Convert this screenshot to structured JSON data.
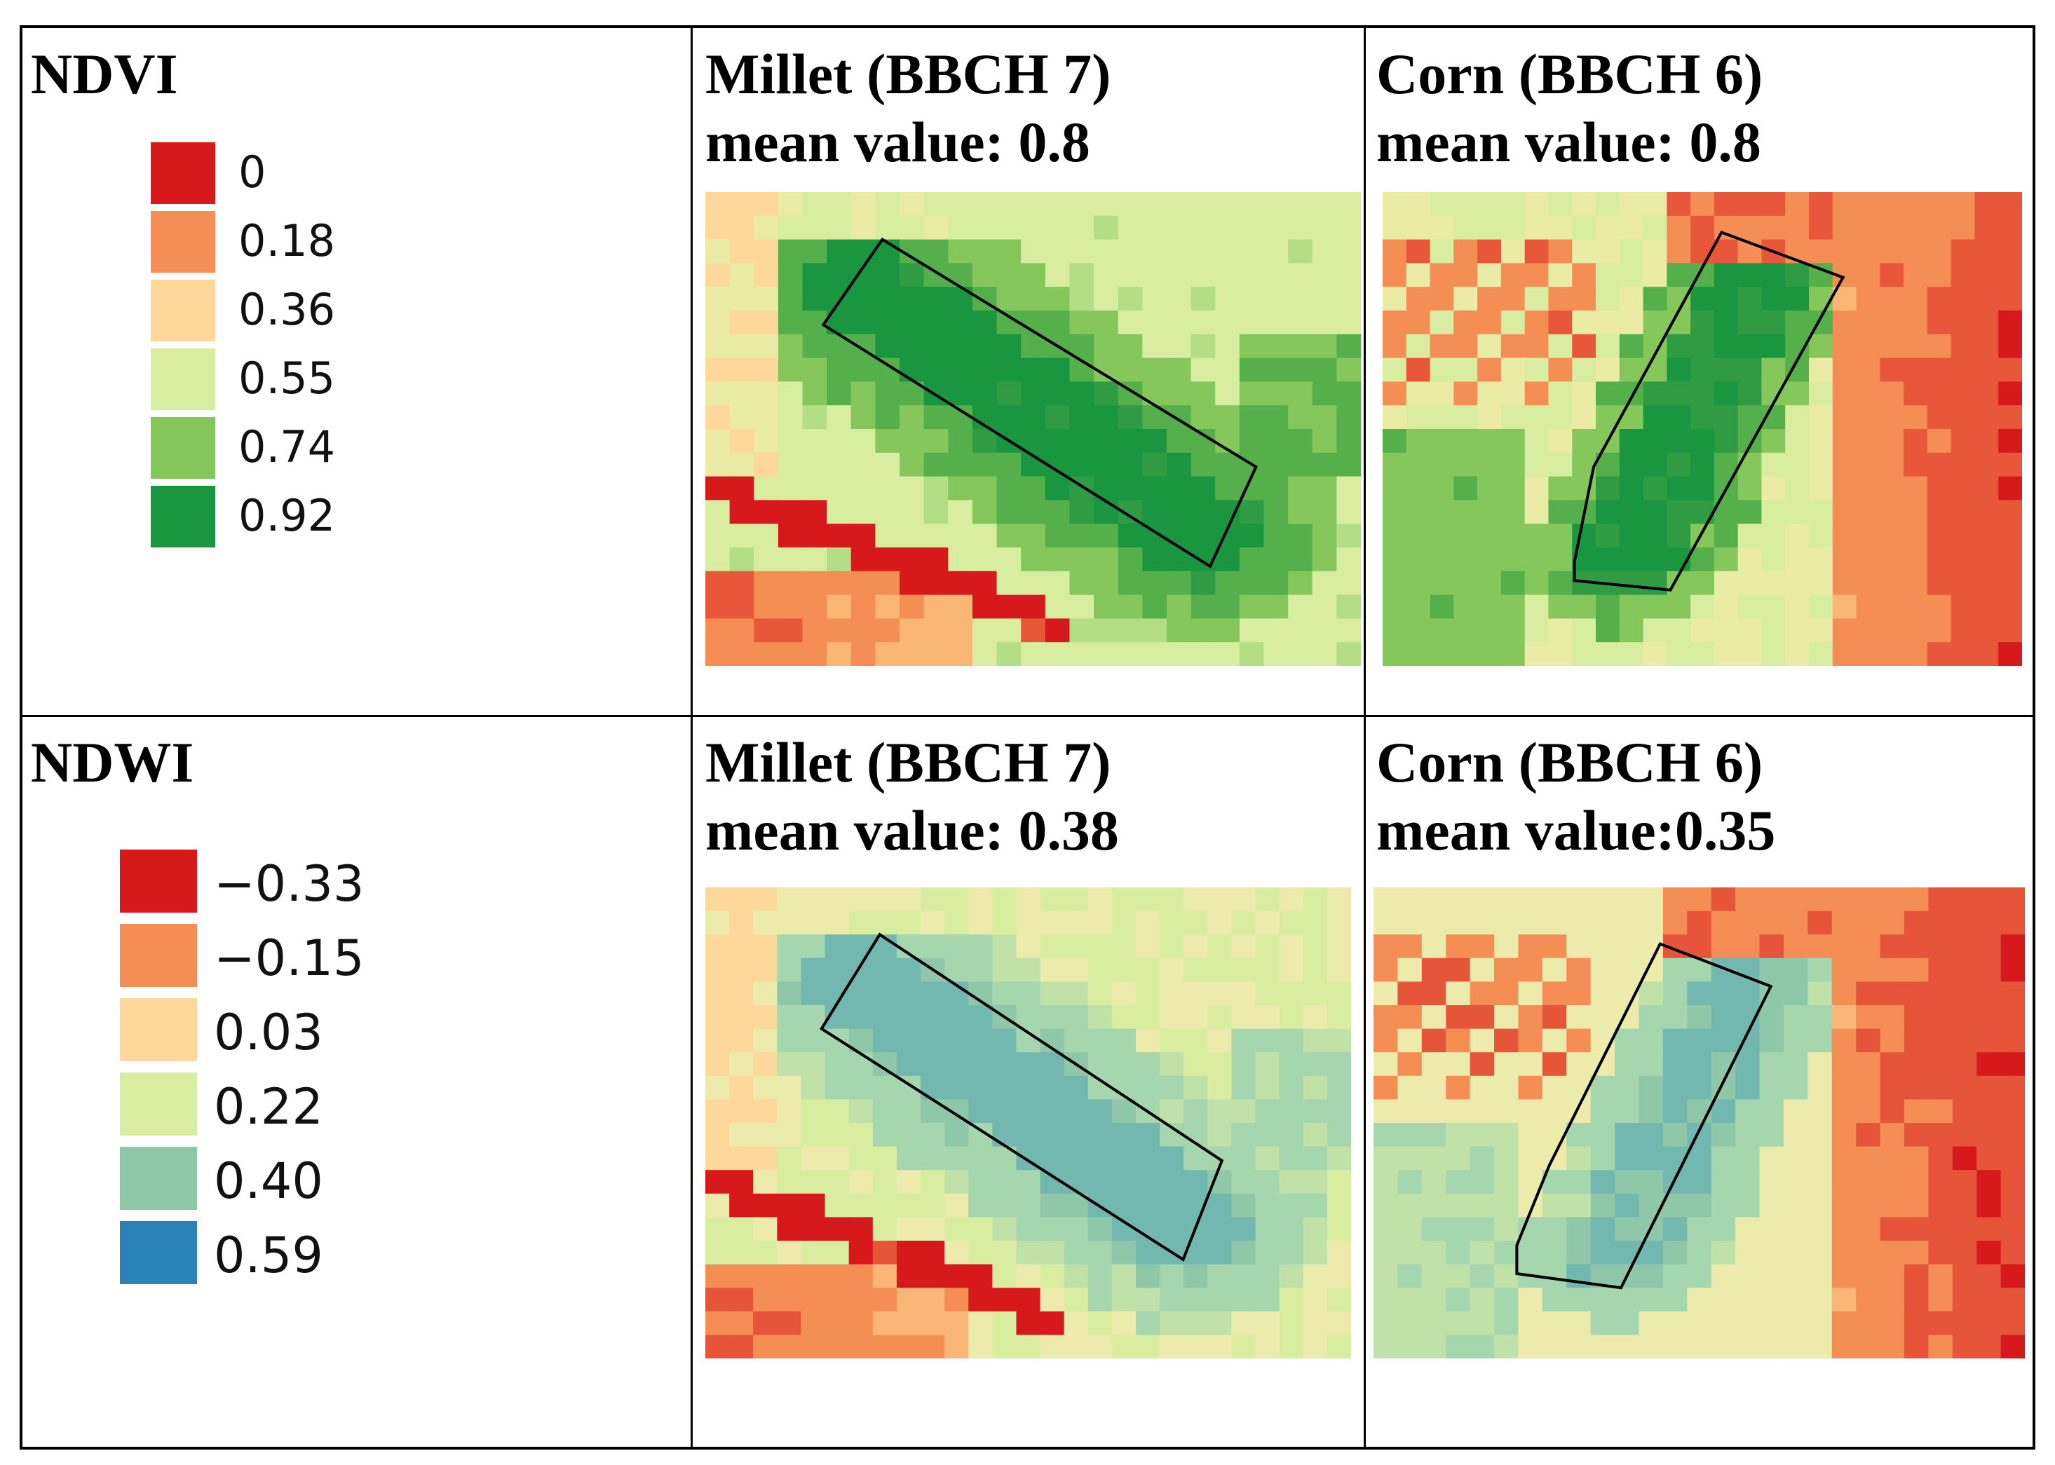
{
  "legends": {
    "ndvi": {
      "title": "NDVI",
      "items": [
        {
          "label": "0",
          "color": "#d7191c"
        },
        {
          "label": "0.18",
          "color": "#f48e54"
        },
        {
          "label": "0.36",
          "color": "#fdd89a"
        },
        {
          "label": "0.55",
          "color": "#d9eda1"
        },
        {
          "label": "0.74",
          "color": "#85c75a"
        },
        {
          "label": "0.92",
          "color": "#1a9641"
        }
      ]
    },
    "ndwi": {
      "title": "NDWI",
      "items": [
        {
          "label": "−0.33",
          "color": "#d7191c"
        },
        {
          "label": "−0.15",
          "color": "#f48e54"
        },
        {
          "label": "0.03",
          "color": "#fdd89a"
        },
        {
          "label": "0.22",
          "color": "#d9eda1"
        },
        {
          "label": "0.40",
          "color": "#8ec8a8"
        },
        {
          "label": "0.59",
          "color": "#2b83ba"
        }
      ]
    }
  },
  "panels": {
    "ndvi_millet": {
      "crop": "Millet (BBCH 7)",
      "mean": "mean value: 0.8"
    },
    "ndvi_corn": {
      "crop": "Corn (BBCH 6)",
      "mean": "mean value: 0.8"
    },
    "ndwi_millet": {
      "crop": "Millet (BBCH 7)",
      "mean": "mean value: 0.38"
    },
    "ndwi_corn": {
      "crop": "Corn (BBCH 6)",
      "mean": "mean value:0.35"
    }
  }
}
